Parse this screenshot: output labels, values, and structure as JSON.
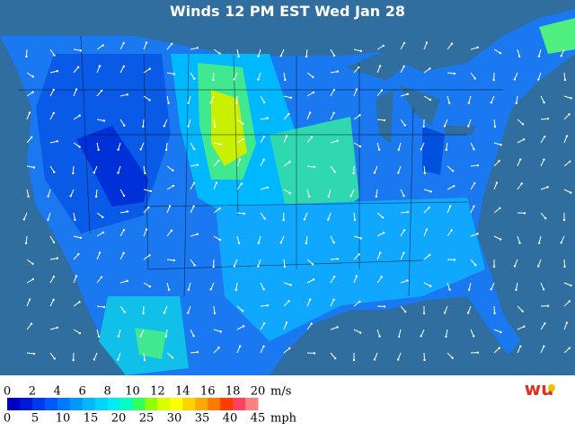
{
  "title": "Winds 12 PM EST Wed Jan 28",
  "legend": {
    "ms_ticks": [
      0,
      2,
      4,
      6,
      8,
      10,
      12,
      14,
      16,
      18,
      20
    ],
    "ms_unit": "m/s",
    "mph_ticks": [
      0,
      5,
      10,
      15,
      20,
      25,
      30,
      35,
      40,
      45
    ],
    "mph_unit": "mph",
    "colors": [
      "#0000c0",
      "#0018dc",
      "#0038f0",
      "#0058ff",
      "#0078ff",
      "#0098ff",
      "#00b8ff",
      "#00d4ff",
      "#00ecf0",
      "#00ffc0",
      "#30ff60",
      "#90ff00",
      "#d8ff00",
      "#ffff00",
      "#ffd400",
      "#ffa800",
      "#ff7800",
      "#ff3c00",
      "#ff4060",
      "#ff8080"
    ]
  },
  "logo": "wu"
}
